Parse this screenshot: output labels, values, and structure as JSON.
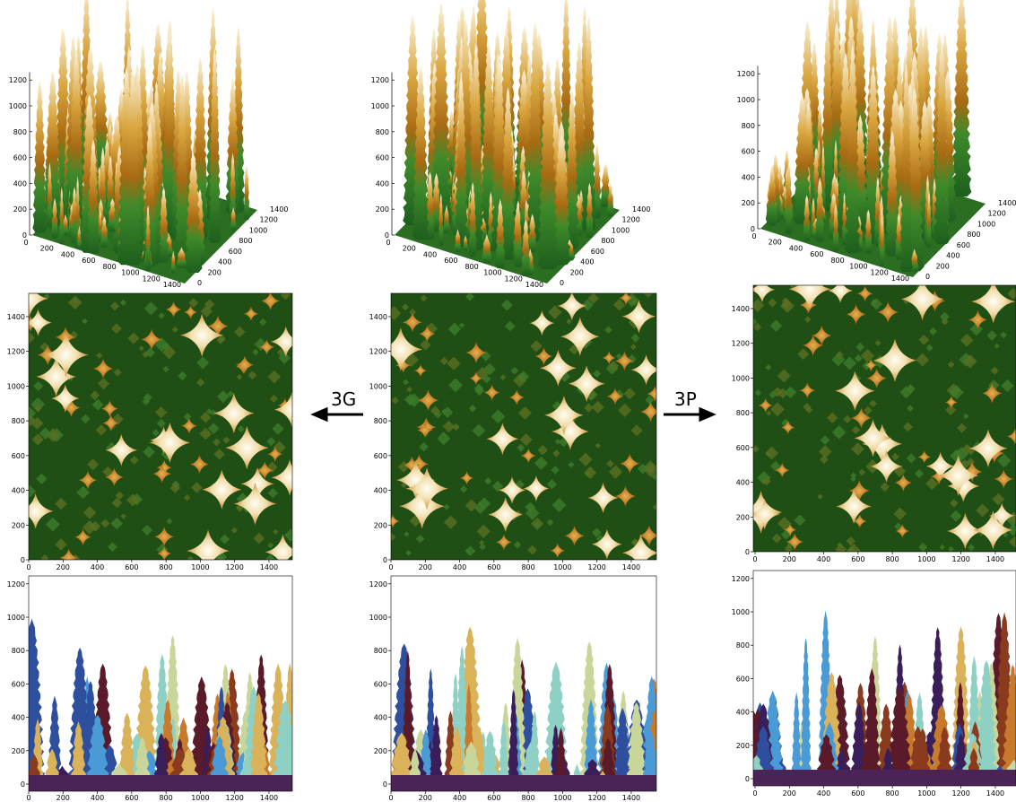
{
  "arrows": [
    {
      "label": "3G"
    },
    {
      "label": "3P"
    }
  ],
  "columns": [
    {
      "surface": {
        "zticks": [
          0,
          200,
          400,
          600,
          800,
          1000,
          1200
        ],
        "xticks": [
          0,
          200,
          400,
          600,
          800,
          1000,
          1200,
          1400
        ],
        "yticks": [
          0,
          200,
          400,
          600,
          800,
          1000,
          1200,
          1400
        ]
      },
      "top_view": {
        "xticks": [
          0,
          200,
          400,
          600,
          800,
          1000,
          1200,
          1400
        ],
        "yticks": [
          0,
          200,
          400,
          600,
          800,
          1000,
          1200,
          1400
        ]
      },
      "side_view": {
        "xticks": [
          0,
          200,
          400,
          600,
          800,
          1000,
          1200,
          1400
        ],
        "yticks": [
          0,
          200,
          400,
          600,
          800,
          1000,
          1200
        ]
      }
    },
    {
      "surface": {
        "zticks": [
          0,
          200,
          400,
          600,
          800,
          1000,
          1200
        ],
        "xticks": [
          0,
          200,
          400,
          600,
          800,
          1000,
          1200,
          1400
        ],
        "yticks": [
          0,
          200,
          400,
          600,
          800,
          1000,
          1200,
          1400
        ]
      },
      "top_view": {
        "xticks": [
          0,
          200,
          400,
          600,
          800,
          1000,
          1200,
          1400
        ],
        "yticks": [
          0,
          200,
          400,
          600,
          800,
          1000,
          1200,
          1400
        ]
      },
      "side_view": {
        "xticks": [
          0,
          200,
          400,
          600,
          800,
          1000,
          1200,
          1400
        ],
        "yticks": [
          0,
          200,
          400,
          600,
          800,
          1000,
          1200
        ]
      }
    },
    {
      "surface": {
        "zticks": [
          0,
          200,
          400,
          600,
          800,
          1000,
          1200
        ],
        "xticks": [
          0,
          200,
          400,
          600,
          800,
          1000,
          1200,
          1400
        ],
        "yticks": [
          0,
          200,
          400,
          600,
          800,
          1000,
          1200,
          1400
        ]
      },
      "top_view": {
        "xticks": [
          0,
          200,
          400,
          600,
          800,
          1000,
          1200,
          1400
        ],
        "yticks": [
          0,
          200,
          400,
          600,
          800,
          1000,
          1200,
          1400
        ]
      },
      "side_view": {
        "xticks": [
          0,
          200,
          400,
          600,
          800,
          1000,
          1200,
          1400
        ],
        "yticks": [
          0,
          200,
          400,
          600,
          800,
          1000,
          1200
        ]
      }
    }
  ]
}
